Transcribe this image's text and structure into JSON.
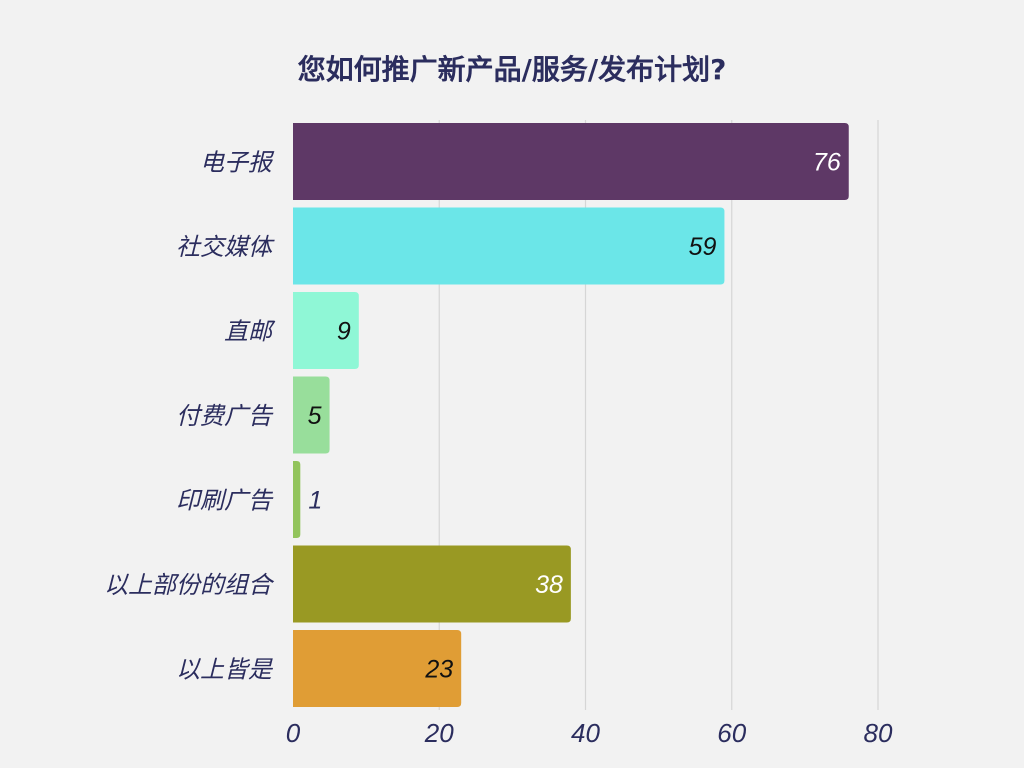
{
  "chart_data": {
    "type": "bar",
    "orientation": "horizontal",
    "title": "您如何推广新产品/服务/发布计划?",
    "categories": [
      "电子报",
      "社交媒体",
      "直邮",
      "付费广告",
      "印刷广告",
      "以上部份的组合",
      "以上皆是"
    ],
    "values": [
      76,
      59,
      9,
      5,
      1,
      38,
      23
    ],
    "value_labels": [
      "76",
      "59",
      "9",
      "5",
      "1",
      "38",
      "23"
    ],
    "colors": [
      "#5e3866",
      "#6be6e8",
      "#8ff7d6",
      "#98de9b",
      "#92c45c",
      "#999923",
      "#e09d35"
    ],
    "value_label_colors": [
      "#ffffff",
      "#111111",
      "#111111",
      "#111111",
      "#2b2d5e",
      "#ffffff",
      "#111111"
    ],
    "xlim": [
      0,
      80
    ],
    "x_ticks": [
      "0",
      "20",
      "40",
      "60",
      "80"
    ],
    "grid": true,
    "legend": "none"
  }
}
